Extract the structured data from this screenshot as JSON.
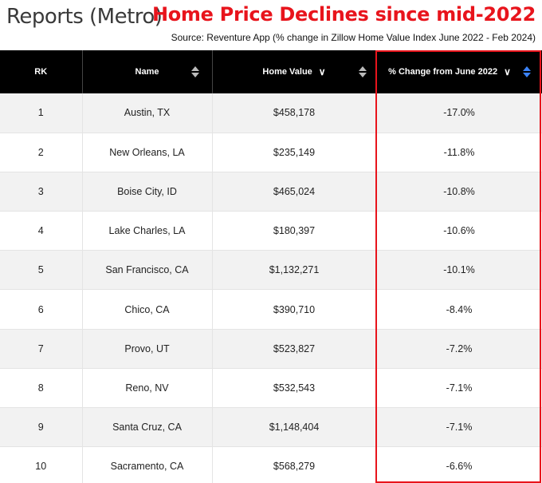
{
  "page_title": "Reports (Metro)",
  "headline": "Home Price Declines since mid-2022",
  "source": "Source: Reventure App (% change in Zillow Home Value Index June 2022 - Feb 2024)",
  "table": {
    "columns": {
      "rank": "RK",
      "name": "Name",
      "home_value": "Home Value",
      "change": "% Change from June 2022"
    },
    "rows": [
      {
        "rank": "1",
        "name": "Austin, TX",
        "home_value": "$458,178",
        "change": "-17.0%"
      },
      {
        "rank": "2",
        "name": "New Orleans, LA",
        "home_value": "$235,149",
        "change": "-11.8%"
      },
      {
        "rank": "3",
        "name": "Boise City, ID",
        "home_value": "$465,024",
        "change": "-10.8%"
      },
      {
        "rank": "4",
        "name": "Lake Charles, LA",
        "home_value": "$180,397",
        "change": "-10.6%"
      },
      {
        "rank": "5",
        "name": "San Francisco, CA",
        "home_value": "$1,132,271",
        "change": "-10.1%"
      },
      {
        "rank": "6",
        "name": "Chico, CA",
        "home_value": "$390,710",
        "change": "-8.4%"
      },
      {
        "rank": "7",
        "name": "Provo, UT",
        "home_value": "$523,827",
        "change": "-7.2%"
      },
      {
        "rank": "8",
        "name": "Reno, NV",
        "home_value": "$532,543",
        "change": "-7.1%"
      },
      {
        "rank": "9",
        "name": "Santa Cruz, CA",
        "home_value": "$1,148,404",
        "change": "-7.1%"
      },
      {
        "rank": "10",
        "name": "Sacramento, CA",
        "home_value": "$568,279",
        "change": "-6.6%"
      }
    ]
  },
  "colors": {
    "headline": "#e8141c",
    "header_bg": "#000000",
    "active_sort": "#3b82f6",
    "highlight_border": "#e8141c"
  }
}
